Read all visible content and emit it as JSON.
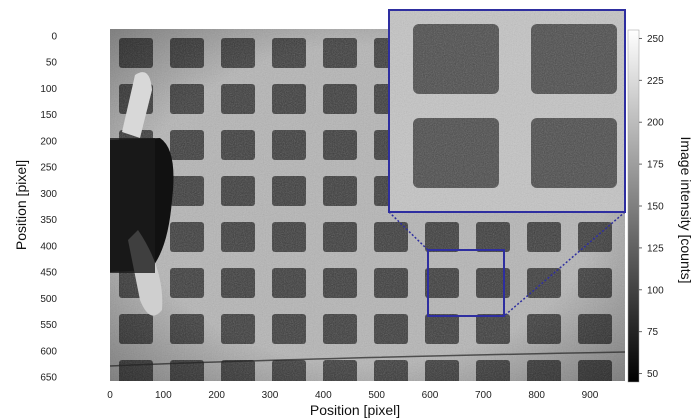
{
  "figure": {
    "xlabel": "Position [pixel]",
    "ylabel": "Position [pixel]",
    "colorbar_label": "Image intensity [counts]",
    "x_ticks": [
      "0",
      "100",
      "200",
      "300",
      "400",
      "500",
      "600",
      "700",
      "800",
      "900"
    ],
    "y_ticks": [
      "0",
      "50",
      "100",
      "150",
      "200",
      "250",
      "300",
      "350",
      "400",
      "450",
      "500",
      "550",
      "600",
      "650"
    ],
    "colorbar_ticks": [
      "250",
      "225",
      "200",
      "175",
      "150",
      "125",
      "100",
      "75",
      "50"
    ],
    "x_range": [
      0,
      900
    ],
    "y_range": [
      0,
      650
    ],
    "colorbar_range": [
      45,
      255
    ],
    "zoom_region": {
      "x": [
        600,
        740
      ],
      "y": [
        400,
        525
      ]
    },
    "colors": {
      "zoom_frame": "#2e2ea0",
      "background": "#ffffff"
    }
  }
}
